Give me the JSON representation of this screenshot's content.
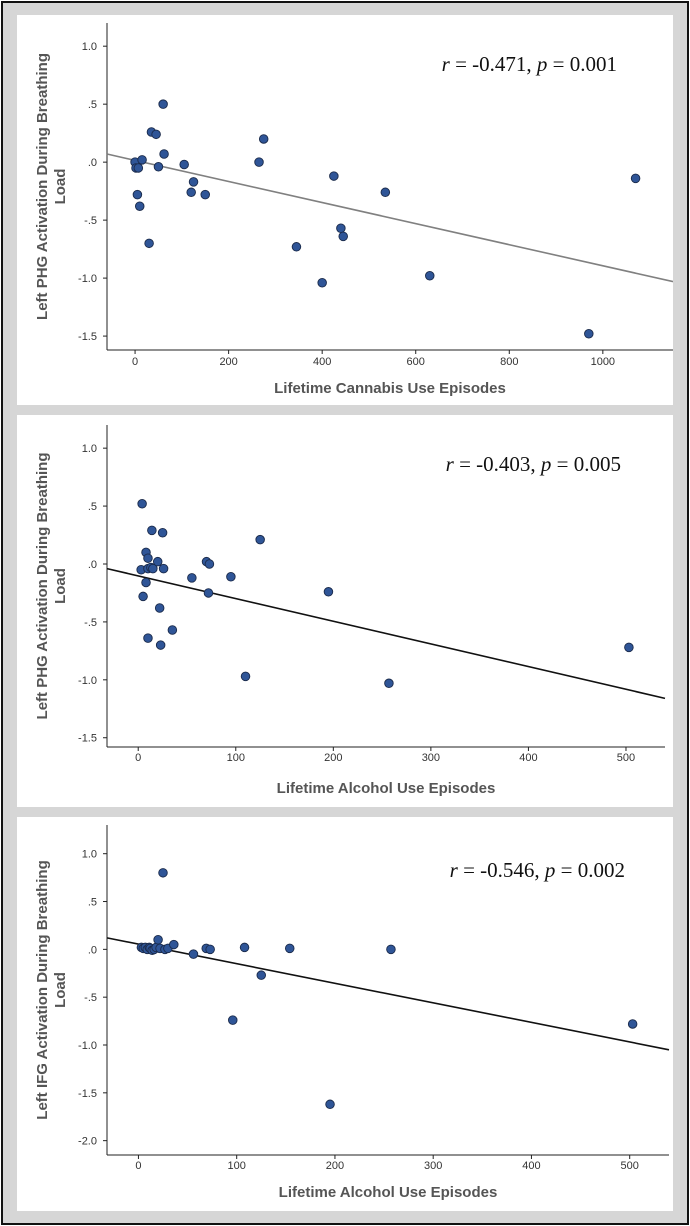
{
  "chart_data": [
    {
      "type": "scatter",
      "title": "",
      "xlabel": "Lifetime Cannabis Use Episodes",
      "ylabel_lines": [
        "Left PHG Activation During Breathing",
        "Load"
      ],
      "annotation": {
        "r_label": "r",
        "r_text": " = -0.471, ",
        "p_label": "p",
        "p_text": " = 0.001"
      },
      "xlim": [
        -60,
        1150
      ],
      "ylim": [
        -1.62,
        1.2
      ],
      "xticks": [
        0,
        200,
        400,
        600,
        800,
        1000
      ],
      "xtick_labels": [
        "0",
        "200",
        "400",
        "600",
        "800",
        "1000"
      ],
      "yticks": [
        1.0,
        0.5,
        0.0,
        -0.5,
        -1.0,
        -1.5
      ],
      "ytick_labels": [
        "1.0",
        ".5",
        ".0",
        "-.5",
        "-1.0",
        "-1.5"
      ],
      "trendline": {
        "x": [
          -60,
          1150
        ],
        "y": [
          0.07,
          -1.03
        ],
        "color": "#808080"
      },
      "point_color": "#2f5597",
      "x": [
        0,
        2,
        5,
        7,
        10,
        15,
        30,
        35,
        45,
        50,
        60,
        62,
        105,
        120,
        125,
        150,
        265,
        275,
        345,
        400,
        425,
        440,
        445,
        535,
        630,
        970,
        1070
      ],
      "y": [
        0.0,
        -0.05,
        -0.28,
        -0.05,
        -0.38,
        0.02,
        -0.7,
        0.26,
        0.24,
        -0.04,
        0.5,
        0.07,
        -0.02,
        -0.26,
        -0.17,
        -0.28,
        0.0,
        0.2,
        -0.73,
        -1.04,
        -0.12,
        -0.57,
        -0.64,
        -0.26,
        -0.98,
        -1.48,
        -0.14
      ]
    },
    {
      "type": "scatter",
      "title": "",
      "xlabel": "Lifetime Alcohol Use Episodes",
      "ylabel_lines": [
        "Left PHG Activation During Breathing",
        "Load"
      ],
      "annotation": {
        "r_label": "r",
        "r_text": " = -0.403, ",
        "p_label": "p",
        "p_text": " = 0.005"
      },
      "xlim": [
        -32,
        540
      ],
      "ylim": [
        -1.58,
        1.2
      ],
      "xticks": [
        0,
        100,
        200,
        300,
        400,
        500
      ],
      "xtick_labels": [
        "0",
        "100",
        "200",
        "300",
        "400",
        "500"
      ],
      "yticks": [
        1.0,
        0.5,
        0.0,
        -0.5,
        -1.0,
        -1.5
      ],
      "ytick_labels": [
        "1.0",
        ".5",
        ".0",
        "-.5",
        "-1.0",
        "-1.5"
      ],
      "trendline": {
        "x": [
          -32,
          540
        ],
        "y": [
          -0.04,
          -1.16
        ],
        "color": "#111111"
      },
      "point_color": "#2f5597",
      "x": [
        3,
        4,
        5,
        8,
        8,
        10,
        10,
        10,
        13,
        14,
        15,
        20,
        22,
        23,
        25,
        26,
        35,
        55,
        70,
        72,
        73,
        95,
        110,
        125,
        195,
        257,
        503
      ],
      "y": [
        -0.05,
        0.52,
        -0.28,
        -0.16,
        0.1,
        0.05,
        -0.04,
        -0.64,
        -0.03,
        0.29,
        -0.04,
        0.02,
        -0.38,
        -0.7,
        0.27,
        -0.04,
        -0.57,
        -0.12,
        0.02,
        -0.25,
        0.0,
        -0.11,
        -0.97,
        0.21,
        -0.24,
        -1.03,
        -0.72
      ]
    },
    {
      "type": "scatter",
      "title": "",
      "xlabel": "Lifetime Alcohol Use Episodes",
      "ylabel_lines": [
        "Left IFG Activation During Breathing",
        "Load"
      ],
      "annotation": {
        "r_label": "r",
        "r_text": " = -0.546, ",
        "p_label": "p",
        "p_text": " = 0.002"
      },
      "xlim": [
        -32,
        540
      ],
      "ylim": [
        -2.15,
        1.3
      ],
      "xticks": [
        0,
        100,
        200,
        300,
        400,
        500
      ],
      "xtick_labels": [
        "0",
        "100",
        "200",
        "300",
        "400",
        "500"
      ],
      "yticks": [
        1.0,
        0.5,
        0.0,
        -0.5,
        -1.0,
        -1.5,
        -2.0
      ],
      "ytick_labels": [
        "1.0",
        ".5",
        ".0",
        "-.5",
        "-1.0",
        "-1.5",
        "-2.0"
      ],
      "trendline": {
        "x": [
          -32,
          540
        ],
        "y": [
          0.12,
          -1.05
        ],
        "color": "#111111"
      },
      "point_color": "#2f5597",
      "x": [
        3,
        5,
        7,
        9,
        11,
        12,
        14,
        16,
        18,
        20,
        22,
        25,
        27,
        30,
        36,
        56,
        69,
        73,
        96,
        108,
        125,
        154,
        195,
        257,
        503
      ],
      "y": [
        0.02,
        0.01,
        0.02,
        0.0,
        0.02,
        0.01,
        -0.01,
        0.0,
        0.02,
        0.1,
        0.01,
        0.8,
        0.0,
        0.01,
        0.05,
        -0.05,
        0.01,
        0.0,
        -0.74,
        0.02,
        -0.27,
        0.01,
        -1.62,
        0.0,
        -0.78
      ]
    }
  ]
}
